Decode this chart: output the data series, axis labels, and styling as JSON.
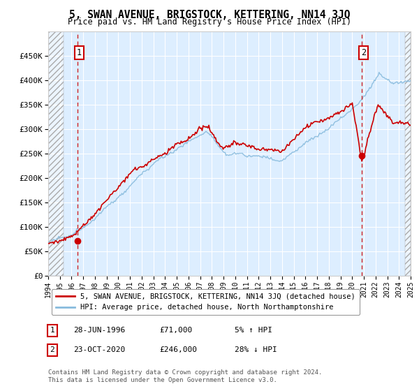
{
  "title": "5, SWAN AVENUE, BRIGSTOCK, KETTERING, NN14 3JQ",
  "subtitle": "Price paid vs. HM Land Registry's House Price Index (HPI)",
  "legend_house": "5, SWAN AVENUE, BRIGSTOCK, KETTERING, NN14 3JQ (detached house)",
  "legend_hpi": "HPI: Average price, detached house, North Northamptonshire",
  "annotation1_label": "1",
  "annotation1_date": "28-JUN-1996",
  "annotation1_price": "£71,000",
  "annotation1_hpi": "5% ↑ HPI",
  "annotation2_label": "2",
  "annotation2_date": "23-OCT-2020",
  "annotation2_price": "£246,000",
  "annotation2_hpi": "28% ↓ HPI",
  "footer": "Contains HM Land Registry data © Crown copyright and database right 2024.\nThis data is licensed under the Open Government Licence v3.0.",
  "house_color": "#cc0000",
  "hpi_color": "#88bbdd",
  "background_plot": "#ddeeff",
  "ylim": [
    0,
    500000
  ],
  "xlim_year_start": 1994,
  "xlim_year_end": 2025,
  "sale1_year": 1996.49,
  "sale1_price": 71000,
  "sale2_year": 2020.81,
  "sale2_price": 246000,
  "hatch_left_end": 1995.3,
  "hatch_right_start": 2024.5
}
